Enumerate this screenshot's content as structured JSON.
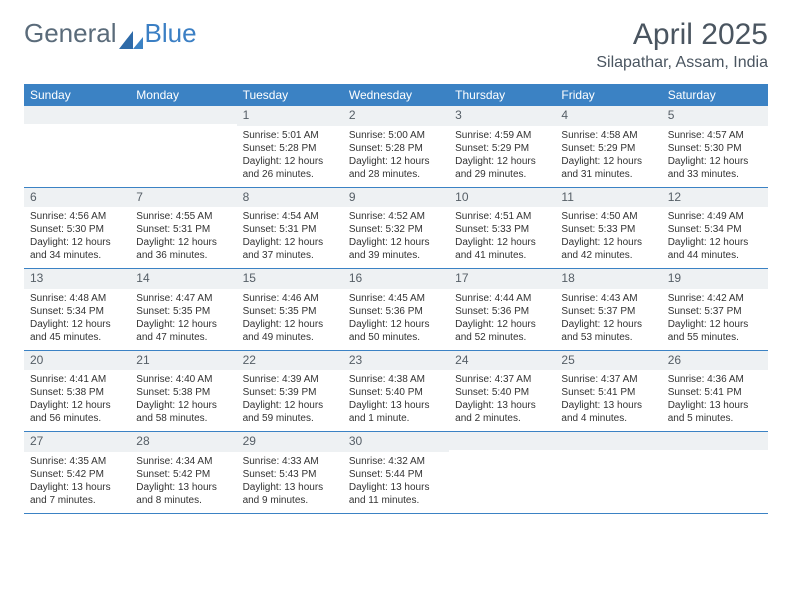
{
  "brand": {
    "part1": "General",
    "part2": "Blue"
  },
  "title": "April 2025",
  "location": "Silapathar, Assam, India",
  "colors": {
    "header_bg": "#3b82c4",
    "header_text": "#ffffff",
    "daynum_bg": "#eef1f3",
    "text": "#333333",
    "title_text": "#4a5560",
    "rule": "#3b82c4"
  },
  "day_names": [
    "Sunday",
    "Monday",
    "Tuesday",
    "Wednesday",
    "Thursday",
    "Friday",
    "Saturday"
  ],
  "weeks": [
    [
      {
        "n": "",
        "sunrise": "",
        "sunset": "",
        "daylight": ""
      },
      {
        "n": "",
        "sunrise": "",
        "sunset": "",
        "daylight": ""
      },
      {
        "n": "1",
        "sunrise": "Sunrise: 5:01 AM",
        "sunset": "Sunset: 5:28 PM",
        "daylight": "Daylight: 12 hours and 26 minutes."
      },
      {
        "n": "2",
        "sunrise": "Sunrise: 5:00 AM",
        "sunset": "Sunset: 5:28 PM",
        "daylight": "Daylight: 12 hours and 28 minutes."
      },
      {
        "n": "3",
        "sunrise": "Sunrise: 4:59 AM",
        "sunset": "Sunset: 5:29 PM",
        "daylight": "Daylight: 12 hours and 29 minutes."
      },
      {
        "n": "4",
        "sunrise": "Sunrise: 4:58 AM",
        "sunset": "Sunset: 5:29 PM",
        "daylight": "Daylight: 12 hours and 31 minutes."
      },
      {
        "n": "5",
        "sunrise": "Sunrise: 4:57 AM",
        "sunset": "Sunset: 5:30 PM",
        "daylight": "Daylight: 12 hours and 33 minutes."
      }
    ],
    [
      {
        "n": "6",
        "sunrise": "Sunrise: 4:56 AM",
        "sunset": "Sunset: 5:30 PM",
        "daylight": "Daylight: 12 hours and 34 minutes."
      },
      {
        "n": "7",
        "sunrise": "Sunrise: 4:55 AM",
        "sunset": "Sunset: 5:31 PM",
        "daylight": "Daylight: 12 hours and 36 minutes."
      },
      {
        "n": "8",
        "sunrise": "Sunrise: 4:54 AM",
        "sunset": "Sunset: 5:31 PM",
        "daylight": "Daylight: 12 hours and 37 minutes."
      },
      {
        "n": "9",
        "sunrise": "Sunrise: 4:52 AM",
        "sunset": "Sunset: 5:32 PM",
        "daylight": "Daylight: 12 hours and 39 minutes."
      },
      {
        "n": "10",
        "sunrise": "Sunrise: 4:51 AM",
        "sunset": "Sunset: 5:33 PM",
        "daylight": "Daylight: 12 hours and 41 minutes."
      },
      {
        "n": "11",
        "sunrise": "Sunrise: 4:50 AM",
        "sunset": "Sunset: 5:33 PM",
        "daylight": "Daylight: 12 hours and 42 minutes."
      },
      {
        "n": "12",
        "sunrise": "Sunrise: 4:49 AM",
        "sunset": "Sunset: 5:34 PM",
        "daylight": "Daylight: 12 hours and 44 minutes."
      }
    ],
    [
      {
        "n": "13",
        "sunrise": "Sunrise: 4:48 AM",
        "sunset": "Sunset: 5:34 PM",
        "daylight": "Daylight: 12 hours and 45 minutes."
      },
      {
        "n": "14",
        "sunrise": "Sunrise: 4:47 AM",
        "sunset": "Sunset: 5:35 PM",
        "daylight": "Daylight: 12 hours and 47 minutes."
      },
      {
        "n": "15",
        "sunrise": "Sunrise: 4:46 AM",
        "sunset": "Sunset: 5:35 PM",
        "daylight": "Daylight: 12 hours and 49 minutes."
      },
      {
        "n": "16",
        "sunrise": "Sunrise: 4:45 AM",
        "sunset": "Sunset: 5:36 PM",
        "daylight": "Daylight: 12 hours and 50 minutes."
      },
      {
        "n": "17",
        "sunrise": "Sunrise: 4:44 AM",
        "sunset": "Sunset: 5:36 PM",
        "daylight": "Daylight: 12 hours and 52 minutes."
      },
      {
        "n": "18",
        "sunrise": "Sunrise: 4:43 AM",
        "sunset": "Sunset: 5:37 PM",
        "daylight": "Daylight: 12 hours and 53 minutes."
      },
      {
        "n": "19",
        "sunrise": "Sunrise: 4:42 AM",
        "sunset": "Sunset: 5:37 PM",
        "daylight": "Daylight: 12 hours and 55 minutes."
      }
    ],
    [
      {
        "n": "20",
        "sunrise": "Sunrise: 4:41 AM",
        "sunset": "Sunset: 5:38 PM",
        "daylight": "Daylight: 12 hours and 56 minutes."
      },
      {
        "n": "21",
        "sunrise": "Sunrise: 4:40 AM",
        "sunset": "Sunset: 5:38 PM",
        "daylight": "Daylight: 12 hours and 58 minutes."
      },
      {
        "n": "22",
        "sunrise": "Sunrise: 4:39 AM",
        "sunset": "Sunset: 5:39 PM",
        "daylight": "Daylight: 12 hours and 59 minutes."
      },
      {
        "n": "23",
        "sunrise": "Sunrise: 4:38 AM",
        "sunset": "Sunset: 5:40 PM",
        "daylight": "Daylight: 13 hours and 1 minute."
      },
      {
        "n": "24",
        "sunrise": "Sunrise: 4:37 AM",
        "sunset": "Sunset: 5:40 PM",
        "daylight": "Daylight: 13 hours and 2 minutes."
      },
      {
        "n": "25",
        "sunrise": "Sunrise: 4:37 AM",
        "sunset": "Sunset: 5:41 PM",
        "daylight": "Daylight: 13 hours and 4 minutes."
      },
      {
        "n": "26",
        "sunrise": "Sunrise: 4:36 AM",
        "sunset": "Sunset: 5:41 PM",
        "daylight": "Daylight: 13 hours and 5 minutes."
      }
    ],
    [
      {
        "n": "27",
        "sunrise": "Sunrise: 4:35 AM",
        "sunset": "Sunset: 5:42 PM",
        "daylight": "Daylight: 13 hours and 7 minutes."
      },
      {
        "n": "28",
        "sunrise": "Sunrise: 4:34 AM",
        "sunset": "Sunset: 5:42 PM",
        "daylight": "Daylight: 13 hours and 8 minutes."
      },
      {
        "n": "29",
        "sunrise": "Sunrise: 4:33 AM",
        "sunset": "Sunset: 5:43 PM",
        "daylight": "Daylight: 13 hours and 9 minutes."
      },
      {
        "n": "30",
        "sunrise": "Sunrise: 4:32 AM",
        "sunset": "Sunset: 5:44 PM",
        "daylight": "Daylight: 13 hours and 11 minutes."
      },
      {
        "n": "",
        "sunrise": "",
        "sunset": "",
        "daylight": ""
      },
      {
        "n": "",
        "sunrise": "",
        "sunset": "",
        "daylight": ""
      },
      {
        "n": "",
        "sunrise": "",
        "sunset": "",
        "daylight": ""
      }
    ]
  ]
}
